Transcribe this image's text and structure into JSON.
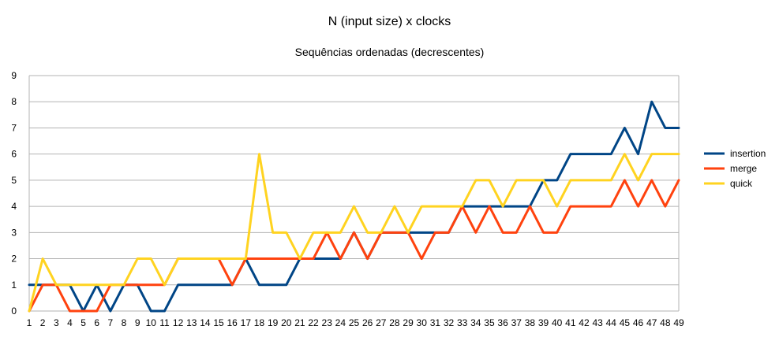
{
  "chart_data": {
    "type": "line",
    "title": "N (input size) x clocks",
    "subtitle": "Sequências ordenadas (decrescentes)",
    "xlabel": "",
    "ylabel": "",
    "categories": [
      "1",
      "2",
      "3",
      "4",
      "5",
      "6",
      "7",
      "8",
      "9",
      "10",
      "11",
      "12",
      "13",
      "14",
      "15",
      "16",
      "17",
      "18",
      "19",
      "20",
      "21",
      "22",
      "23",
      "24",
      "25",
      "26",
      "27",
      "28",
      "29",
      "30",
      "31",
      "32",
      "33",
      "34",
      "35",
      "36",
      "37",
      "38",
      "39",
      "40",
      "41",
      "42",
      "43",
      "44",
      "45",
      "46",
      "47",
      "48",
      "49"
    ],
    "ylim": [
      0,
      9
    ],
    "yticks": [
      "0",
      "1",
      "2",
      "3",
      "4",
      "5",
      "6",
      "7",
      "8",
      "9"
    ],
    "grid": "horizontal",
    "legend_position": "right",
    "series": [
      {
        "name": "insertion",
        "color": "#004586",
        "values": [
          1,
          1,
          1,
          1,
          0,
          1,
          0,
          1,
          1,
          0,
          0,
          1,
          1,
          1,
          1,
          1,
          2,
          1,
          1,
          1,
          2,
          2,
          2,
          2,
          3,
          2,
          3,
          3,
          3,
          3,
          3,
          3,
          4,
          4,
          4,
          4,
          4,
          4,
          5,
          5,
          6,
          6,
          6,
          6,
          7,
          6,
          8,
          7,
          7
        ]
      },
      {
        "name": "merge",
        "color": "#ff420e",
        "values": [
          0,
          1,
          1,
          0,
          0,
          0,
          1,
          1,
          1,
          1,
          1,
          2,
          2,
          2,
          2,
          1,
          2,
          2,
          2,
          2,
          2,
          2,
          3,
          2,
          3,
          2,
          3,
          3,
          3,
          2,
          3,
          3,
          4,
          3,
          4,
          3,
          3,
          4,
          3,
          3,
          4,
          4,
          4,
          4,
          5,
          4,
          5,
          4,
          5
        ]
      },
      {
        "name": "quick",
        "color": "#ffd320",
        "values": [
          0,
          2,
          1,
          1,
          1,
          1,
          1,
          1,
          2,
          2,
          1,
          2,
          2,
          2,
          2,
          2,
          2,
          6,
          3,
          3,
          2,
          3,
          3,
          3,
          4,
          3,
          3,
          4,
          3,
          4,
          4,
          4,
          4,
          5,
          5,
          4,
          5,
          5,
          5,
          4,
          5,
          5,
          5,
          5,
          6,
          5,
          6,
          6,
          6
        ]
      }
    ]
  }
}
